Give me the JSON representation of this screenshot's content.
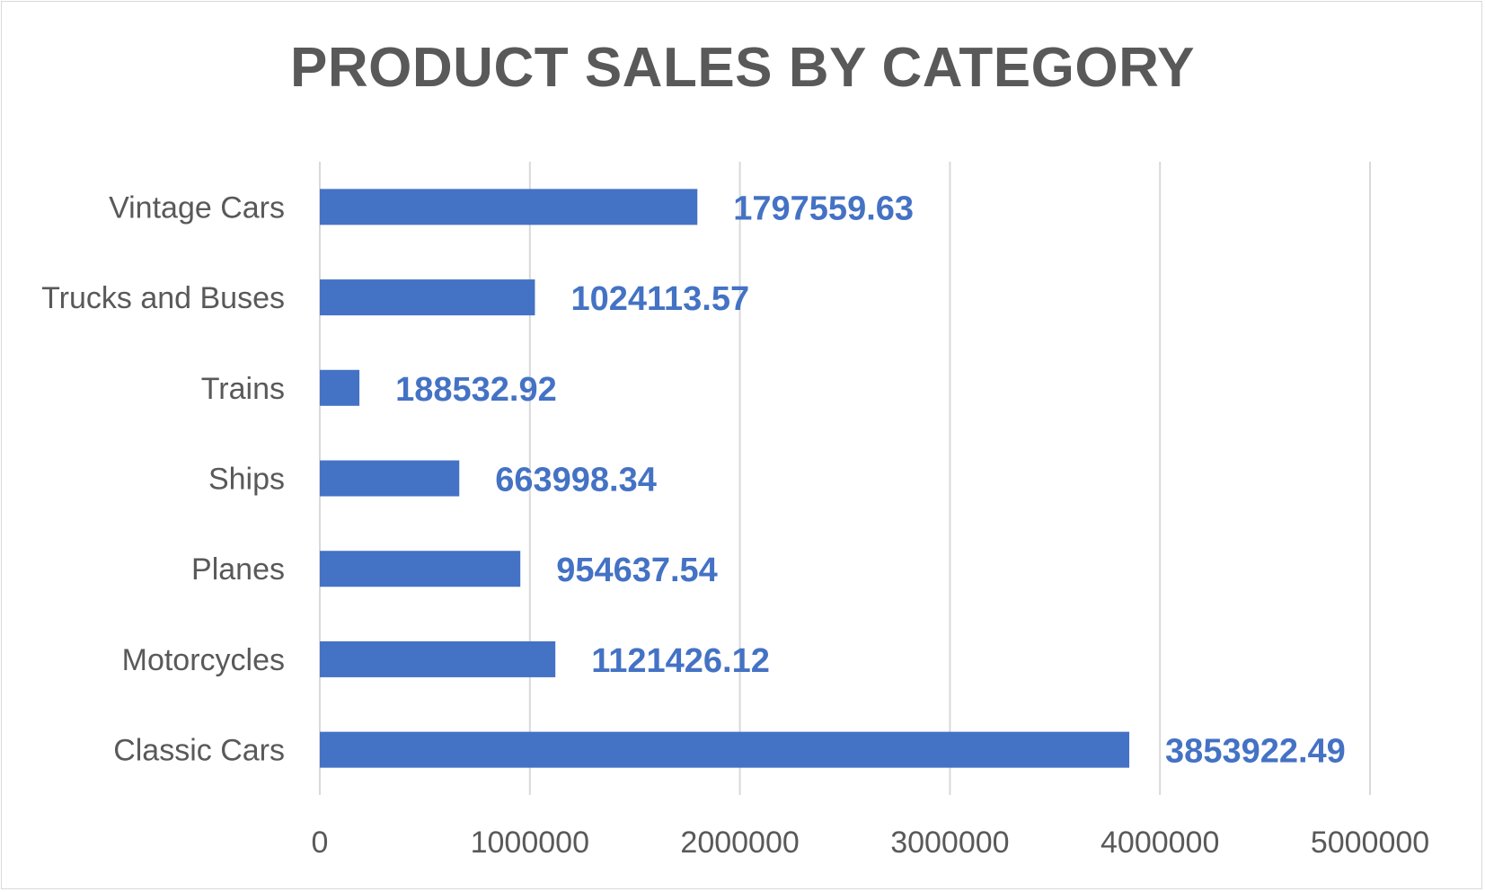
{
  "chart_data": {
    "type": "bar",
    "orientation": "horizontal",
    "title": "PRODUCT SALES BY CATEGORY",
    "categories": [
      "Classic Cars",
      "Motorcycles",
      "Planes",
      "Ships",
      "Trains",
      "Trucks and Buses",
      "Vintage Cars"
    ],
    "values": [
      3853922.49,
      1121426.12,
      954637.54,
      663998.34,
      188532.92,
      1024113.57,
      1797559.63
    ],
    "data_labels": [
      "3853922.49",
      "1121426.12",
      "954637.54",
      "663998.34",
      "188532.92",
      "1024113.57",
      "1797559.63"
    ],
    "x_ticks": [
      "0",
      "1000000",
      "2000000",
      "3000000",
      "4000000",
      "5000000"
    ],
    "xlim": [
      0,
      5000000
    ],
    "grid": "vertical",
    "legend": "none",
    "bar_color": "#4472C4",
    "label_color": "#4472C4",
    "text_color": "#595959",
    "grid_color": "#d9d9d9"
  }
}
